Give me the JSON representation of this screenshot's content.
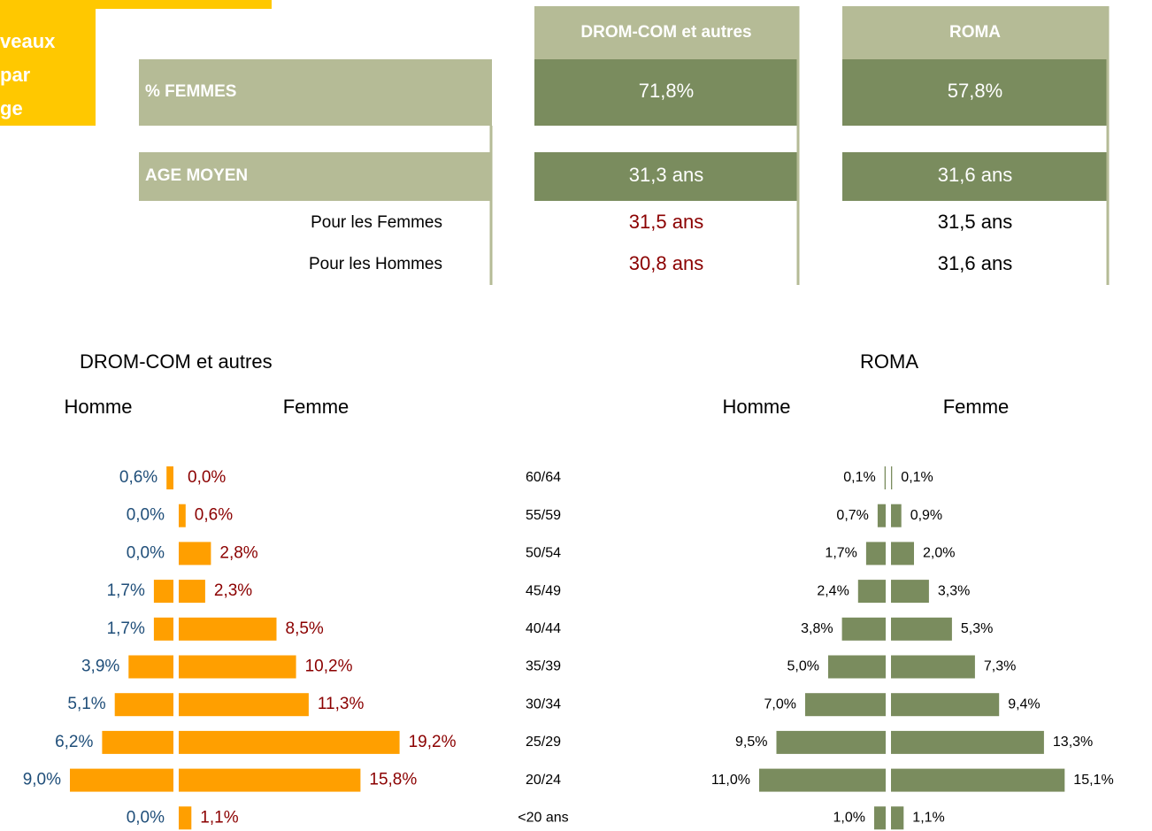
{
  "banner": {
    "lines": [
      "veaux",
      "par",
      "ge"
    ]
  },
  "table": {
    "columns": [
      "DROM-COM et autres",
      "ROMA"
    ],
    "rows": [
      [
        "% FEMMES",
        "71,8%",
        "57,8%"
      ],
      [
        "AGE MOYEN",
        "31,3 ans",
        "31,6 ans"
      ],
      [
        "Pour les Femmes",
        "31,5 ans",
        "31,5 ans"
      ],
      [
        "Pour les Hommes",
        "30,8 ans",
        "31,6 ans"
      ]
    ]
  },
  "chart_data": [
    {
      "type": "pyramid",
      "title": "DROM-COM et autres",
      "categories": [
        "60/64",
        "55/59",
        "50/54",
        "45/49",
        "40/44",
        "35/39",
        "30/34",
        "25/29",
        "20/24",
        "<20 ans"
      ],
      "series": [
        {
          "name": "Homme",
          "color": "#ff9f00",
          "label_color": "#1f4e79",
          "values": [
            0.6,
            0.0,
            0.0,
            1.7,
            1.7,
            3.9,
            5.1,
            6.2,
            9.0,
            0.0
          ],
          "value_labels": [
            "0,6%",
            "0,0%",
            "0,0%",
            "1,7%",
            "1,7%",
            "3,9%",
            "5,1%",
            "6,2%",
            "9,0%",
            "0,0%"
          ]
        },
        {
          "name": "Femme",
          "color": "#ff9f00",
          "label_color": "#8b0000",
          "values": [
            0.0,
            0.6,
            2.8,
            2.3,
            8.5,
            10.2,
            11.3,
            19.2,
            15.8,
            1.1
          ],
          "value_labels": [
            "0,0%",
            "0,6%",
            "2,8%",
            "2,3%",
            "8,5%",
            "10,2%",
            "11,3%",
            "19,2%",
            "15,8%",
            "1,1%"
          ]
        }
      ]
    },
    {
      "type": "pyramid",
      "title": "ROMA",
      "series": [
        {
          "name": "Homme",
          "color": "#7a8c5e",
          "label_color": "#000000",
          "values": [
            0.1,
            0.7,
            1.7,
            2.4,
            3.8,
            5.0,
            7.0,
            9.5,
            11.0,
            1.0
          ],
          "value_labels": [
            "0,1%",
            "0,7%",
            "1,7%",
            "2,4%",
            "3,8%",
            "5,0%",
            "7,0%",
            "9,5%",
            "11,0%",
            "1,0%"
          ]
        },
        {
          "name": "Femme",
          "color": "#7a8c5e",
          "label_color": "#000000",
          "values": [
            0.1,
            0.9,
            2.0,
            3.3,
            5.3,
            7.3,
            9.4,
            13.3,
            15.1,
            1.1
          ],
          "value_labels": [
            "0,1%",
            "0,9%",
            "2,0%",
            "3,3%",
            "5,3%",
            "7,3%",
            "9,4%",
            "13,3%",
            "15,1%",
            "1,1%"
          ]
        }
      ]
    }
  ]
}
